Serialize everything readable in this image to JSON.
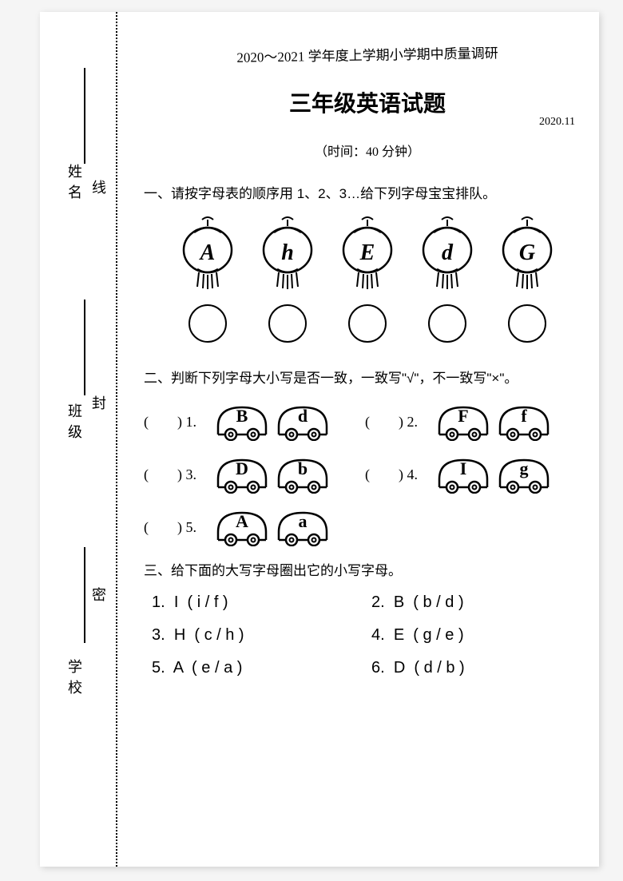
{
  "header": {
    "semester_line": "2020～2021 学年度上学期小学期中质量调研",
    "title": "三年级英语试题",
    "date": "2020.11",
    "time_note": "（时间：40 分钟）"
  },
  "binding": {
    "labels": [
      "姓名",
      "班级",
      "学校"
    ],
    "seal_chars": [
      "线",
      "封",
      "密"
    ]
  },
  "section1": {
    "title": "一、请按字母表的顺序用 1、2、3…给下列字母宝宝排队。",
    "letters": [
      "A",
      "h",
      "E",
      "d",
      "G"
    ]
  },
  "section2": {
    "title": "二、判断下列字母大小写是否一致，一致写\"√\"，不一致写\"×\"。",
    "items": [
      {
        "num": "1",
        "big": "B",
        "small": "d"
      },
      {
        "num": "2",
        "big": "F",
        "small": "f"
      },
      {
        "num": "3",
        "big": "D",
        "small": "b"
      },
      {
        "num": "4",
        "big": "I",
        "small": "g"
      },
      {
        "num": "5",
        "big": "A",
        "small": "a"
      }
    ]
  },
  "section3": {
    "title": "三、给下面的大写字母圈出它的小写字母。",
    "items": [
      {
        "num": "1.",
        "text": "I  ( i / f )"
      },
      {
        "num": "2.",
        "text": "B  ( b / d )"
      },
      {
        "num": "3.",
        "text": "H  ( c / h )"
      },
      {
        "num": "4.",
        "text": "E  ( g / e )"
      },
      {
        "num": "5.",
        "text": "A  ( e / a )"
      },
      {
        "num": "6.",
        "text": "D  ( d / b )"
      }
    ]
  },
  "colors": {
    "stroke": "#000000",
    "page_bg": "#ffffff",
    "outer_bg": "#f5f5f5"
  }
}
